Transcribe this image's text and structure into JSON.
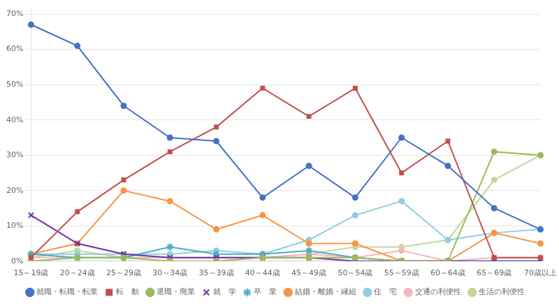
{
  "chart_data": {
    "type": "line",
    "categories": [
      "15～19歳",
      "20～24歳",
      "25～29歳",
      "30～34歳",
      "35～39歳",
      "40～44歳",
      "45～49歳",
      "50～54歳",
      "55～59歳",
      "60～64歳",
      "65～69歳",
      "70歳以上"
    ],
    "series": [
      {
        "name": "就職・転職・転業",
        "color": "#4472C4",
        "marker": "circle",
        "values": [
          67,
          61,
          44,
          35,
          34,
          18,
          27,
          18,
          35,
          27,
          15,
          9
        ]
      },
      {
        "name": "転　動",
        "color": "#C0504D",
        "marker": "square",
        "values": [
          1,
          14,
          23,
          31,
          38,
          49,
          41,
          49,
          25,
          34,
          1,
          1
        ]
      },
      {
        "name": "退職・廃業",
        "color": "#9BBB59",
        "marker": "circle",
        "values": [
          0,
          1,
          1,
          0,
          0,
          1,
          1,
          1,
          0,
          0,
          31,
          30
        ]
      },
      {
        "name": "就　学",
        "color": "#7030A0",
        "marker": "x",
        "values": [
          13,
          5,
          2,
          1,
          1,
          1,
          1,
          0,
          0,
          0,
          0,
          0
        ]
      },
      {
        "name": "卒　業",
        "color": "#4BACC6",
        "marker": "star",
        "values": [
          2,
          1,
          1,
          4,
          2,
          2,
          3,
          1,
          0,
          0,
          0,
          0
        ]
      },
      {
        "name": "結婚・離婚・縁組",
        "color": "#F79646",
        "marker": "circle",
        "values": [
          2,
          5,
          20,
          17,
          9,
          13,
          5,
          5,
          0,
          0,
          8,
          5
        ]
      },
      {
        "name": "住　宅",
        "color": "#92CDDC",
        "marker": "circle",
        "values": [
          2,
          2,
          2,
          2,
          3,
          2,
          6,
          13,
          17,
          6,
          8,
          9
        ]
      },
      {
        "name": "交通の利便性",
        "color": "#F4B8C1",
        "marker": "circle",
        "values": [
          1,
          1,
          1,
          1,
          1,
          1,
          2,
          1,
          3,
          0,
          1,
          1
        ]
      },
      {
        "name": "生活の利便性",
        "color": "#C4D79B",
        "marker": "circle",
        "values": [
          1,
          3,
          1,
          1,
          1,
          1,
          2,
          4,
          4,
          6,
          23,
          30
        ]
      }
    ],
    "ylim": [
      0,
      72
    ],
    "yticks": [
      {
        "value": 0,
        "label": "0%"
      },
      {
        "value": 10,
        "label": "10%"
      },
      {
        "value": 20,
        "label": "20%"
      },
      {
        "value": 30,
        "label": "30%"
      },
      {
        "value": 40,
        "label": "40%"
      },
      {
        "value": 50,
        "label": "50%"
      },
      {
        "value": 60,
        "label": "60%"
      },
      {
        "value": 70,
        "label": "70%"
      }
    ],
    "grid": "y",
    "legend": "bottom"
  }
}
